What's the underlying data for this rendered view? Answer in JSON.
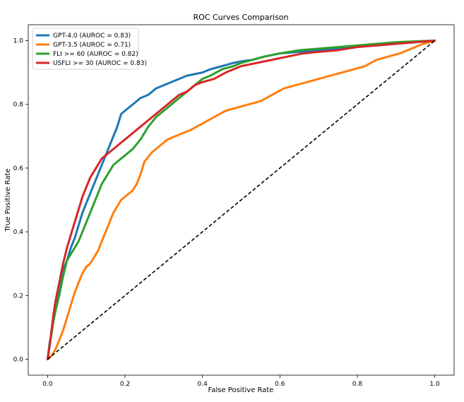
{
  "chart_data": {
    "type": "line",
    "title": "ROC Curves Comparison",
    "xlabel": "False Positive Rate",
    "ylabel": "True Positive Rate",
    "xlim": [
      -0.05,
      1.05
    ],
    "ylim": [
      -0.05,
      1.05
    ],
    "xticks": [
      0.0,
      0.2,
      0.4,
      0.6,
      0.8,
      1.0
    ],
    "yticks": [
      0.0,
      0.2,
      0.4,
      0.6,
      0.8,
      1.0
    ],
    "xtick_labels": [
      "0.0",
      "0.2",
      "0.4",
      "0.6",
      "0.8",
      "1.0"
    ],
    "ytick_labels": [
      "0.0",
      "0.2",
      "0.4",
      "0.6",
      "0.8",
      "1.0"
    ],
    "grid": false,
    "legend_position": "top-left",
    "reference_line": {
      "x": [
        0,
        1
      ],
      "y": [
        0,
        1
      ],
      "style": "dashed",
      "color": "#000000"
    },
    "series": [
      {
        "name": "GPT-4.0 (AUROC = 0.83)",
        "color": "#1f77b4",
        "x": [
          0,
          0.005,
          0.01,
          0.015,
          0.02,
          0.025,
          0.03,
          0.04,
          0.05,
          0.06,
          0.07,
          0.08,
          0.09,
          0.1,
          0.11,
          0.12,
          0.13,
          0.14,
          0.15,
          0.16,
          0.17,
          0.18,
          0.19,
          0.2,
          0.21,
          0.22,
          0.24,
          0.26,
          0.28,
          0.3,
          0.32,
          0.34,
          0.36,
          0.38,
          0.4,
          0.42,
          0.45,
          0.48,
          0.5,
          0.53,
          0.56,
          0.6,
          0.65,
          0.7,
          0.75,
          0.8,
          0.85,
          0.9,
          0.95,
          1.0
        ],
        "y": [
          0,
          0.05,
          0.08,
          0.12,
          0.15,
          0.19,
          0.23,
          0.28,
          0.31,
          0.35,
          0.38,
          0.42,
          0.46,
          0.49,
          0.52,
          0.55,
          0.58,
          0.61,
          0.64,
          0.67,
          0.7,
          0.73,
          0.77,
          0.78,
          0.79,
          0.8,
          0.82,
          0.83,
          0.85,
          0.86,
          0.87,
          0.88,
          0.89,
          0.895,
          0.9,
          0.91,
          0.92,
          0.93,
          0.935,
          0.94,
          0.95,
          0.96,
          0.965,
          0.97,
          0.975,
          0.98,
          0.985,
          0.99,
          0.995,
          1.0
        ]
      },
      {
        "name": "GPT-3.5 (AUROC = 0.71)",
        "color": "#ff7f0e",
        "x": [
          0,
          0.01,
          0.02,
          0.03,
          0.04,
          0.05,
          0.06,
          0.07,
          0.08,
          0.09,
          0.1,
          0.11,
          0.12,
          0.13,
          0.14,
          0.15,
          0.16,
          0.17,
          0.18,
          0.19,
          0.2,
          0.21,
          0.22,
          0.23,
          0.24,
          0.25,
          0.27,
          0.29,
          0.31,
          0.33,
          0.35,
          0.37,
          0.4,
          0.43,
          0.46,
          0.49,
          0.52,
          0.55,
          0.58,
          0.61,
          0.64,
          0.67,
          0.7,
          0.73,
          0.76,
          0.79,
          0.82,
          0.85,
          0.88,
          0.91,
          0.94,
          0.97,
          1.0
        ],
        "y": [
          0,
          0.01,
          0.03,
          0.06,
          0.09,
          0.13,
          0.17,
          0.21,
          0.24,
          0.27,
          0.29,
          0.3,
          0.32,
          0.34,
          0.37,
          0.4,
          0.43,
          0.46,
          0.48,
          0.5,
          0.51,
          0.52,
          0.53,
          0.55,
          0.58,
          0.62,
          0.65,
          0.67,
          0.69,
          0.7,
          0.71,
          0.72,
          0.74,
          0.76,
          0.78,
          0.79,
          0.8,
          0.81,
          0.83,
          0.85,
          0.86,
          0.87,
          0.88,
          0.89,
          0.9,
          0.91,
          0.92,
          0.94,
          0.95,
          0.96,
          0.975,
          0.99,
          1.0
        ]
      },
      {
        "name": "FLI >= 60 (AUROC = 0.82)",
        "color": "#2ca02c",
        "x": [
          0,
          0.005,
          0.01,
          0.015,
          0.02,
          0.03,
          0.04,
          0.05,
          0.06,
          0.07,
          0.08,
          0.09,
          0.1,
          0.11,
          0.12,
          0.13,
          0.14,
          0.15,
          0.16,
          0.17,
          0.18,
          0.2,
          0.22,
          0.24,
          0.26,
          0.28,
          0.3,
          0.32,
          0.34,
          0.36,
          0.38,
          0.4,
          0.42,
          0.45,
          0.48,
          0.5,
          0.53,
          0.56,
          0.6,
          0.65,
          0.7,
          0.75,
          0.8,
          0.85,
          0.9,
          0.95,
          1.0
        ],
        "y": [
          0,
          0.04,
          0.08,
          0.12,
          0.15,
          0.2,
          0.26,
          0.31,
          0.33,
          0.35,
          0.37,
          0.4,
          0.43,
          0.46,
          0.49,
          0.52,
          0.55,
          0.57,
          0.59,
          0.61,
          0.62,
          0.64,
          0.66,
          0.69,
          0.73,
          0.76,
          0.78,
          0.8,
          0.82,
          0.84,
          0.86,
          0.88,
          0.89,
          0.91,
          0.92,
          0.93,
          0.94,
          0.95,
          0.96,
          0.97,
          0.975,
          0.98,
          0.985,
          0.99,
          0.995,
          0.998,
          1.0
        ]
      },
      {
        "name": "USFLI >= 30 (AUROC = 0.83)",
        "color": "#d62728",
        "x": [
          0,
          0.005,
          0.01,
          0.015,
          0.02,
          0.03,
          0.04,
          0.05,
          0.06,
          0.07,
          0.08,
          0.09,
          0.1,
          0.11,
          0.12,
          0.13,
          0.14,
          0.15,
          0.16,
          0.17,
          0.18,
          0.2,
          0.22,
          0.24,
          0.26,
          0.28,
          0.3,
          0.32,
          0.34,
          0.36,
          0.38,
          0.4,
          0.43,
          0.46,
          0.5,
          0.54,
          0.58,
          0.62,
          0.66,
          0.7,
          0.75,
          0.8,
          0.85,
          0.9,
          0.95,
          1.0
        ],
        "y": [
          0,
          0.04,
          0.09,
          0.14,
          0.18,
          0.24,
          0.3,
          0.35,
          0.39,
          0.43,
          0.47,
          0.51,
          0.54,
          0.57,
          0.59,
          0.61,
          0.63,
          0.64,
          0.65,
          0.66,
          0.67,
          0.69,
          0.71,
          0.73,
          0.75,
          0.77,
          0.79,
          0.81,
          0.83,
          0.84,
          0.86,
          0.87,
          0.88,
          0.9,
          0.92,
          0.93,
          0.94,
          0.95,
          0.96,
          0.965,
          0.97,
          0.98,
          0.985,
          0.99,
          0.995,
          1.0
        ]
      }
    ]
  }
}
